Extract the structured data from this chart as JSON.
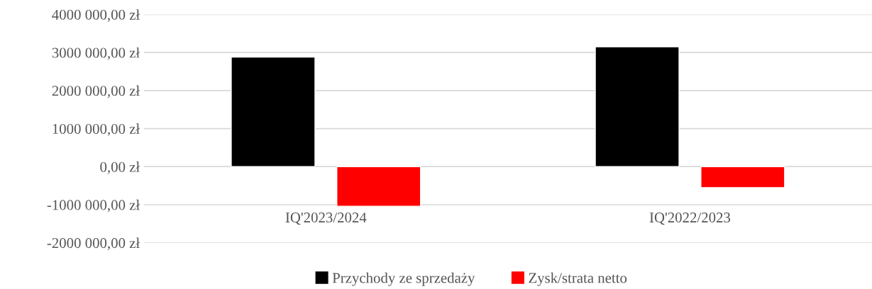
{
  "chart_data": {
    "type": "bar",
    "categories": [
      "IQ'2023/2024",
      "IQ'2022/2023"
    ],
    "series": [
      {
        "name": "Przychody ze sprzedaży",
        "color": "#000000",
        "values": [
          2880000,
          3150000
        ]
      },
      {
        "name": "Zysk/strata netto",
        "color": "#ff0000",
        "values": [
          -1040000,
          -550000
        ]
      }
    ],
    "ylim": [
      -2000000,
      4000000
    ],
    "yticks": [
      {
        "value": -2000000,
        "label": "-2000 000,00 zł"
      },
      {
        "value": -1000000,
        "label": "-1000 000,00 zł"
      },
      {
        "value": 0,
        "label": "0,00 zł"
      },
      {
        "value": 1000000,
        "label": "1000 000,00 zł"
      },
      {
        "value": 2000000,
        "label": "2000 000,00 zł"
      },
      {
        "value": 3000000,
        "label": "3000 000,00 zł"
      },
      {
        "value": 4000000,
        "label": "4000 000,00 zł"
      }
    ],
    "grid": "y",
    "legend": "bottom"
  }
}
